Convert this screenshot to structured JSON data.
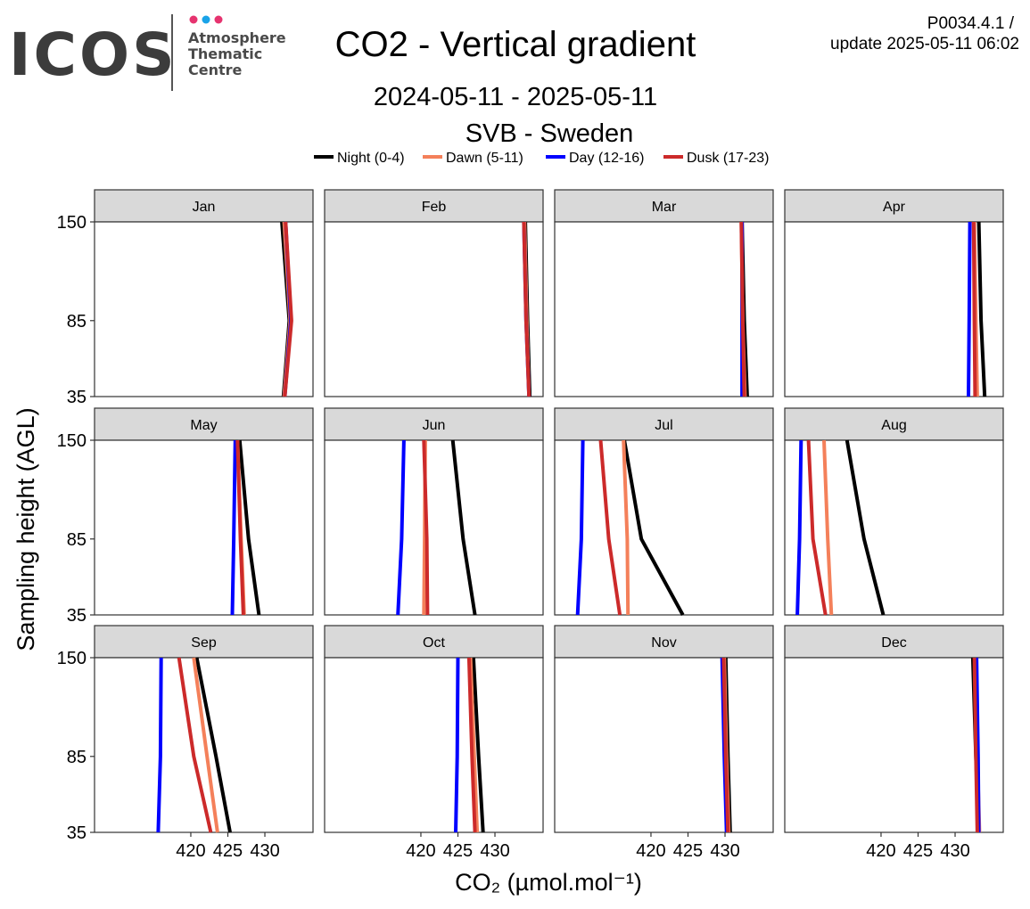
{
  "header": {
    "logo_text": "ICOS",
    "logo_subtitle": [
      "Atmosphere",
      "Thematic",
      "Centre"
    ],
    "logo_dot_colors": [
      "#e6336f",
      "#1aa3e8",
      "#e6336f"
    ],
    "title": "CO2 - Vertical gradient",
    "date_range": "2024-05-11 - 2025-05-11",
    "station": "SVB - Sweden",
    "product_id": "P0034.4.1 /",
    "update": "update  2025-05-11 06:02"
  },
  "chart_data": {
    "type": "line",
    "layout": "facets 4 columns x 3 rows",
    "xlabel": "CO₂ (µmol.mol⁻¹)",
    "ylabel": "Sampling height (AGL)",
    "xlim": [
      407,
      436.5
    ],
    "ylim": [
      35,
      150
    ],
    "x_ticks": [
      420,
      425,
      430
    ],
    "y_ticks": [
      35,
      85,
      150
    ],
    "heights": [
      35,
      85,
      150
    ],
    "legend": [
      {
        "name": "Night (0-4)",
        "color": "#000000"
      },
      {
        "name": "Dawn (5-11)",
        "color": "#f4805a"
      },
      {
        "name": "Day (12-16)",
        "color": "#0000ff"
      },
      {
        "name": "Dusk (17-23)",
        "color": "#cc2a2a"
      }
    ],
    "panels": [
      {
        "month": "Jan",
        "series": {
          "Night (0-4)": [
            432.5,
            433.3,
            432.3
          ],
          "Dawn (5-11)": [
            432.6,
            433.4,
            432.6
          ],
          "Day (12-16)": [
            432.7,
            433.5,
            432.8
          ],
          "Dusk (17-23)": [
            432.7,
            433.6,
            432.8
          ]
        }
      },
      {
        "month": "Feb",
        "series": {
          "Night (0-4)": [
            434.7,
            434.4,
            434.1
          ],
          "Dawn (5-11)": [
            434.6,
            434.3,
            434.0
          ],
          "Day (12-16)": [
            434.6,
            434.2,
            433.9
          ],
          "Dusk (17-23)": [
            434.6,
            434.2,
            433.9
          ]
        }
      },
      {
        "month": "Mar",
        "series": {
          "Night (0-4)": [
            433.0,
            432.6,
            432.3
          ],
          "Dawn (5-11)": [
            432.7,
            432.4,
            432.2
          ],
          "Day (12-16)": [
            432.3,
            432.3,
            432.3
          ],
          "Dusk (17-23)": [
            432.6,
            432.4,
            432.2
          ]
        }
      },
      {
        "month": "Apr",
        "series": {
          "Night (0-4)": [
            434.0,
            433.5,
            433.2
          ],
          "Dawn (5-11)": [
            433.0,
            432.8,
            432.6
          ],
          "Day (12-16)": [
            431.8,
            431.9,
            432.0
          ],
          "Dusk (17-23)": [
            432.7,
            432.6,
            432.5
          ]
        }
      },
      {
        "month": "May",
        "series": {
          "Night (0-4)": [
            429.2,
            427.8,
            426.6
          ],
          "Dawn (5-11)": [
            427.2,
            426.8,
            426.3
          ],
          "Day (12-16)": [
            425.6,
            425.8,
            426.0
          ],
          "Dusk (17-23)": [
            427.1,
            426.7,
            426.3
          ]
        }
      },
      {
        "month": "Jun",
        "series": {
          "Night (0-4)": [
            427.3,
            425.7,
            424.3
          ],
          "Dawn (5-11)": [
            420.4,
            420.5,
            420.6
          ],
          "Day (12-16)": [
            416.9,
            417.4,
            417.7
          ],
          "Dusk (17-23)": [
            420.9,
            420.8,
            420.4
          ]
        }
      },
      {
        "month": "Jul",
        "series": {
          "Night (0-4)": [
            424.3,
            418.7,
            416.4
          ],
          "Dawn (5-11)": [
            416.9,
            416.8,
            416.3
          ],
          "Day (12-16)": [
            410.1,
            410.6,
            410.8
          ],
          "Dusk (17-23)": [
            415.8,
            414.3,
            413.2
          ]
        }
      },
      {
        "month": "Aug",
        "series": {
          "Night (0-4)": [
            420.3,
            417.7,
            415.4
          ],
          "Dawn (5-11)": [
            413.3,
            412.8,
            412.3
          ],
          "Day (12-16)": [
            408.7,
            409.0,
            409.2
          ],
          "Dusk (17-23)": [
            412.5,
            410.8,
            410.2
          ]
        }
      },
      {
        "month": "Sep",
        "series": {
          "Night (0-4)": [
            425.3,
            423.4,
            420.8
          ],
          "Dawn (5-11)": [
            423.6,
            422.2,
            420.4
          ],
          "Day (12-16)": [
            415.6,
            415.9,
            416.0
          ],
          "Dusk (17-23)": [
            422.7,
            420.4,
            418.4
          ]
        }
      },
      {
        "month": "Oct",
        "series": {
          "Night (0-4)": [
            428.4,
            427.8,
            427.1
          ],
          "Dawn (5-11)": [
            427.6,
            427.2,
            426.7
          ],
          "Day (12-16)": [
            424.7,
            424.9,
            425.0
          ],
          "Dusk (17-23)": [
            427.3,
            426.9,
            426.5
          ]
        }
      },
      {
        "month": "Nov",
        "series": {
          "Night (0-4)": [
            430.7,
            430.4,
            430.1
          ],
          "Dawn (5-11)": [
            430.5,
            430.2,
            429.9
          ],
          "Day (12-16)": [
            430.2,
            429.9,
            429.6
          ],
          "Dusk (17-23)": [
            430.4,
            430.1,
            429.8
          ]
        }
      },
      {
        "month": "Dec",
        "series": {
          "Night (0-4)": [
            433.2,
            432.8,
            432.4
          ],
          "Dawn (5-11)": [
            433.3,
            433.0,
            432.7
          ],
          "Day (12-16)": [
            433.2,
            433.1,
            432.9
          ],
          "Dusk (17-23)": [
            433.0,
            432.8,
            432.6
          ]
        }
      }
    ]
  }
}
